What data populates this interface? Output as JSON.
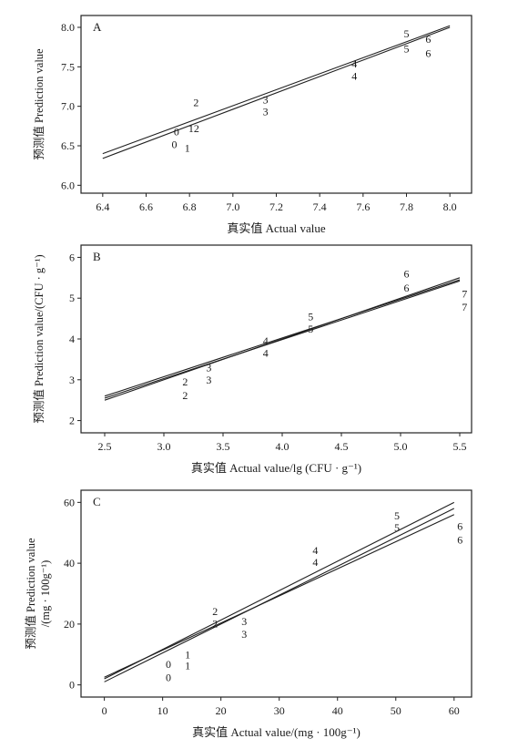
{
  "figure": {
    "panels": [
      {
        "label": "A",
        "xlabel": "真实值 Actual value",
        "ylabel": [
          "预测值 Prediction value"
        ]
      },
      {
        "label": "B",
        "xlabel": "真实值 Actual value/lg (CFU · g⁻¹)",
        "ylabel": [
          "预测值 Prediction value/(CFU · g⁻¹)"
        ]
      },
      {
        "label": "C",
        "xlabel": "真实值 Actual value/(mg · 100g⁻¹)",
        "ylabel": [
          "预测值 Prediction value",
          "/(mg · 100g⁻¹)"
        ]
      }
    ]
  },
  "chart_data": [
    {
      "type": "scatter",
      "panel": "A",
      "xlabel": "真实值 Actual value",
      "ylabel": "预测值 Prediction value",
      "xlim": [
        6.3,
        8.1
      ],
      "ylim": [
        5.9,
        8.15
      ],
      "xticks": [
        6.4,
        6.6,
        6.8,
        7.0,
        7.2,
        7.4,
        7.6,
        7.8,
        8.0
      ],
      "xtick_labels": [
        "6.4",
        "6.6",
        "6.8",
        "7.0",
        "7.2",
        "7.4",
        "7.6",
        "7.8",
        "8.0"
      ],
      "yticks": [
        6.0,
        6.5,
        7.0,
        7.5,
        8.0
      ],
      "ytick_labels": [
        "6.0",
        "6.5",
        "7.0",
        "7.5",
        "8.0"
      ],
      "points": [
        {
          "label": "0",
          "x": 6.74,
          "y": 6.68
        },
        {
          "label": "0",
          "x": 6.73,
          "y": 6.52
        },
        {
          "label": "1",
          "x": 6.79,
          "y": 6.47
        },
        {
          "label": "2",
          "x": 6.83,
          "y": 7.05
        },
        {
          "label": "12",
          "x": 6.82,
          "y": 6.72
        },
        {
          "label": "3",
          "x": 7.15,
          "y": 7.08
        },
        {
          "label": "3",
          "x": 7.15,
          "y": 6.93
        },
        {
          "label": "4",
          "x": 7.56,
          "y": 7.54
        },
        {
          "label": "4",
          "x": 7.56,
          "y": 7.38
        },
        {
          "label": "5",
          "x": 7.8,
          "y": 7.92
        },
        {
          "label": "5",
          "x": 7.8,
          "y": 7.73
        },
        {
          "label": "6",
          "x": 7.9,
          "y": 7.85
        },
        {
          "label": "6",
          "x": 7.9,
          "y": 7.67
        }
      ],
      "lines": [
        {
          "x": [
            6.4,
            8.0
          ],
          "y": [
            6.4,
            8.02
          ]
        },
        {
          "x": [
            6.4,
            8.0
          ],
          "y": [
            6.34,
            8.0
          ]
        }
      ]
    },
    {
      "type": "scatter",
      "panel": "B",
      "xlabel": "真实值 Actual value/lg (CFU · g⁻¹)",
      "ylabel": "预测值 Prediction value/(CFU · g⁻¹)",
      "xlim": [
        2.3,
        5.6
      ],
      "ylim": [
        1.7,
        6.3
      ],
      "xticks": [
        2.5,
        3.0,
        3.5,
        4.0,
        4.5,
        5.0,
        5.5
      ],
      "xtick_labels": [
        "2.5",
        "3.0",
        "3.5",
        "4.0",
        "4.5",
        "5.0",
        "5.5"
      ],
      "yticks": [
        2,
        3,
        4,
        5,
        6
      ],
      "ytick_labels": [
        "2",
        "3",
        "4",
        "5",
        "6"
      ],
      "points": [
        {
          "label": "2",
          "x": 3.18,
          "y": 2.95
        },
        {
          "label": "2",
          "x": 3.18,
          "y": 2.62
        },
        {
          "label": "3",
          "x": 3.38,
          "y": 3.3
        },
        {
          "label": "3",
          "x": 3.38,
          "y": 3.0
        },
        {
          "label": "4",
          "x": 3.86,
          "y": 3.95
        },
        {
          "label": "4",
          "x": 3.86,
          "y": 3.65
        },
        {
          "label": "5",
          "x": 4.24,
          "y": 4.55
        },
        {
          "label": "5",
          "x": 4.24,
          "y": 4.25
        },
        {
          "label": "6",
          "x": 5.05,
          "y": 5.6
        },
        {
          "label": "6",
          "x": 5.05,
          "y": 5.25
        },
        {
          "label": "7",
          "x": 5.54,
          "y": 5.1
        },
        {
          "label": "7",
          "x": 5.54,
          "y": 4.78
        }
      ],
      "lines": [
        {
          "x": [
            2.5,
            5.5
          ],
          "y": [
            2.6,
            5.45
          ]
        },
        {
          "x": [
            2.5,
            5.5
          ],
          "y": [
            2.5,
            5.5
          ]
        },
        {
          "x": [
            2.5,
            5.5
          ],
          "y": [
            2.55,
            5.42
          ]
        }
      ]
    },
    {
      "type": "scatter",
      "panel": "C",
      "xlabel": "真实值 Actual value/(mg · 100g⁻¹)",
      "ylabel": "预测值 Prediction value /(mg · 100g⁻¹)",
      "xlim": [
        -4,
        63
      ],
      "ylim": [
        -4,
        64
      ],
      "xticks": [
        0,
        10,
        20,
        30,
        40,
        50,
        60
      ],
      "xtick_labels": [
        "0",
        "10",
        "20",
        "30",
        "40",
        "50",
        "60"
      ],
      "yticks": [
        0,
        20,
        40,
        60
      ],
      "ytick_labels": [
        "0",
        "20",
        "40",
        "60"
      ],
      "points": [
        {
          "label": "1",
          "x": 14.3,
          "y": 10.0
        },
        {
          "label": "1",
          "x": 14.3,
          "y": 6.3
        },
        {
          "label": "0",
          "x": 11.0,
          "y": 6.8
        },
        {
          "label": "0",
          "x": 11.0,
          "y": 2.4
        },
        {
          "label": "2",
          "x": 19.0,
          "y": 24.2
        },
        {
          "label": "2",
          "x": 19.0,
          "y": 20.1
        },
        {
          "label": "3",
          "x": 24.0,
          "y": 20.8
        },
        {
          "label": "3",
          "x": 24.0,
          "y": 16.6
        },
        {
          "label": "4",
          "x": 36.2,
          "y": 44.3
        },
        {
          "label": "4",
          "x": 36.2,
          "y": 40.3
        },
        {
          "label": "5",
          "x": 50.2,
          "y": 55.6
        },
        {
          "label": "5",
          "x": 50.2,
          "y": 51.7
        },
        {
          "label": "6",
          "x": 61.0,
          "y": 52.1
        },
        {
          "label": "6",
          "x": 61.0,
          "y": 47.7
        }
      ],
      "lines": [
        {
          "x": [
            0,
            60
          ],
          "y": [
            2.0,
            60.0
          ]
        },
        {
          "x": [
            0,
            60
          ],
          "y": [
            1.0,
            58.0
          ]
        },
        {
          "x": [
            0,
            60
          ],
          "y": [
            2.5,
            56.0
          ]
        }
      ]
    }
  ]
}
